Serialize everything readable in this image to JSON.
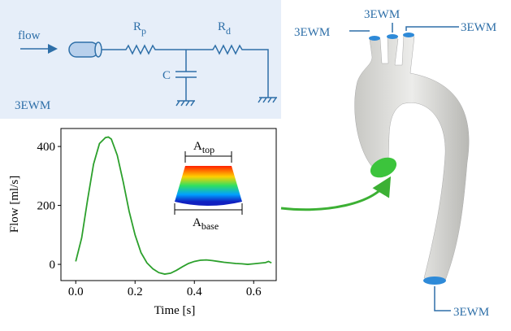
{
  "circuit": {
    "inflow_label": "flow",
    "resistor_proximal": {
      "main": "R",
      "sub": "p"
    },
    "resistor_distal": {
      "main": "R",
      "sub": "d"
    },
    "capacitor": "C",
    "model": "3EWM"
  },
  "inlet_shape": {
    "top": {
      "main": "A",
      "sub": "top"
    },
    "base": {
      "main": "A",
      "sub": "base"
    }
  },
  "outlets": [
    "3EWM",
    "3EWM",
    "3EWM",
    "3EWM"
  ],
  "chart_data": {
    "type": "line",
    "xlabel": "Time [s]",
    "ylabel": "Flow [ml/s]",
    "x": [
      0,
      0.02,
      0.04,
      0.06,
      0.08,
      0.1,
      0.11,
      0.12,
      0.14,
      0.16,
      0.18,
      0.2,
      0.22,
      0.24,
      0.26,
      0.28,
      0.3,
      0.32,
      0.34,
      0.36,
      0.38,
      0.4,
      0.42,
      0.44,
      0.46,
      0.48,
      0.5,
      0.52,
      0.54,
      0.56,
      0.58,
      0.6,
      0.62,
      0.64,
      0.65,
      0.66
    ],
    "series": [
      {
        "color": "#2ca02c",
        "values": [
          10,
          90,
          220,
          340,
          410,
          430,
          432,
          425,
          370,
          280,
          180,
          100,
          40,
          5,
          -15,
          -28,
          -33,
          -30,
          -20,
          -8,
          3,
          10,
          14,
          15,
          13,
          10,
          7,
          5,
          3,
          2,
          0,
          2,
          4,
          6,
          10,
          5
        ]
      }
    ],
    "xlim": [
      -0.05,
      0.676
    ],
    "ylim": [
      -55,
      461
    ],
    "xticks": [
      {
        "value": 0,
        "label": "0.0"
      },
      0.2,
      0.4,
      0.6
    ],
    "yticks": [
      0,
      200,
      400
    ]
  }
}
